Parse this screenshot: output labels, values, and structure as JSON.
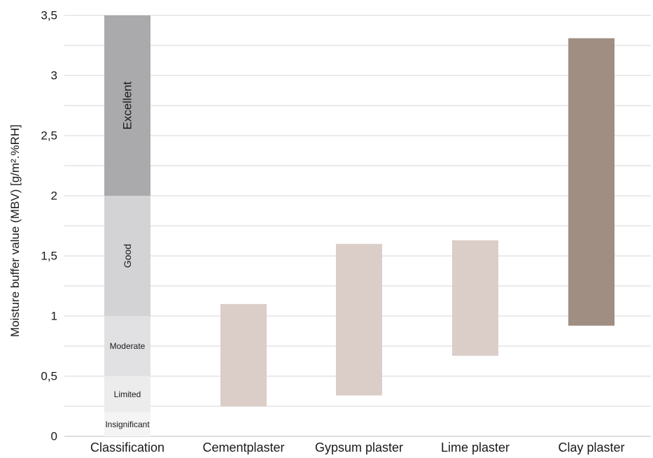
{
  "chart_data": {
    "type": "bar",
    "subtype": "floating-range",
    "ylabel": "Moisture buffer value (MBV) [g/m².%RH]",
    "ylim": [
      0,
      3.5
    ],
    "yticks": [
      "0",
      "0,5",
      "1",
      "1,5",
      "2",
      "2,5",
      "3",
      "3,5"
    ],
    "ytick_values": [
      0,
      0.5,
      1,
      1.5,
      2,
      2.5,
      3,
      3.5
    ],
    "grid": true,
    "categories": [
      "Classification",
      "Cementplaster",
      "Gypsum plaster",
      "Lime plaster",
      "Clay plaster"
    ],
    "classification_bands": [
      {
        "label": "Insignificant",
        "low": 0,
        "high": 0.2,
        "color": "#f4f4f4"
      },
      {
        "label": "Limited",
        "low": 0.2,
        "high": 0.5,
        "color": "#ececed"
      },
      {
        "label": "Moderate",
        "low": 0.5,
        "high": 1.0,
        "color": "#e1e1e3"
      },
      {
        "label": "Good",
        "low": 1.0,
        "high": 2.0,
        "color": "#d3d3d6"
      },
      {
        "label": "Excellent",
        "low": 2.0,
        "high": 3.5,
        "color": "#aaaaad"
      }
    ],
    "ranges": [
      {
        "category": "Cementplaster",
        "low": 0.25,
        "high": 1.1,
        "color": "#dbcdc7"
      },
      {
        "category": "Gypsum plaster",
        "low": 0.34,
        "high": 1.6,
        "color": "#dbcdc7"
      },
      {
        "category": "Lime plaster",
        "low": 0.67,
        "high": 1.63,
        "color": "#dbcdc7"
      },
      {
        "category": "Clay plaster",
        "low": 0.92,
        "high": 3.31,
        "color": "#a08e82"
      }
    ]
  }
}
